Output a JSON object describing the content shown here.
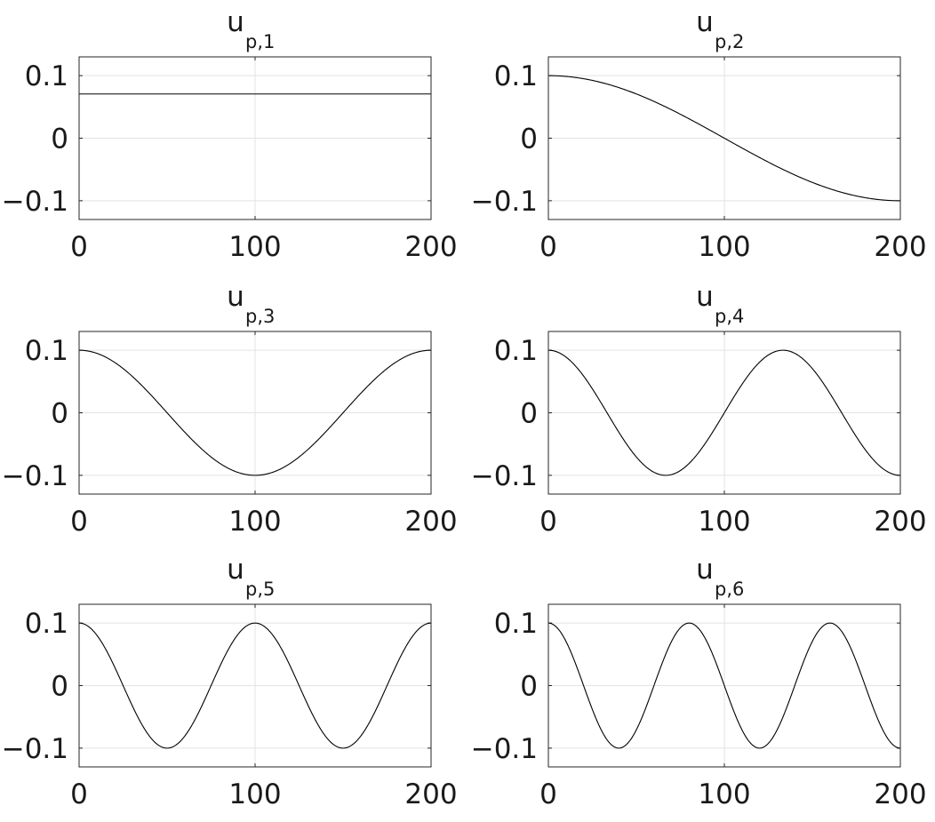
{
  "chart_data": [
    {
      "type": "line",
      "title": "u",
      "title_sub": "p,1",
      "x_range": [
        0,
        200
      ],
      "ylim": [
        -0.13,
        0.13
      ],
      "xticks": [
        0,
        100,
        200
      ],
      "xtick_labels": [
        "0",
        "100",
        "200"
      ],
      "yticks": [
        0.1,
        0,
        -0.1
      ],
      "ytick_labels": [
        "0.1",
        "0",
        "−0.1"
      ],
      "grid": true,
      "series": [
        {
          "function": "0.1*cos(0*pi*x/200)/sqrt(2)",
          "mode": 0,
          "amplitude": 0.0707
        }
      ]
    },
    {
      "type": "line",
      "title": "u",
      "title_sub": "p,2",
      "x_range": [
        0,
        200
      ],
      "ylim": [
        -0.13,
        0.13
      ],
      "xticks": [
        0,
        100,
        200
      ],
      "xtick_labels": [
        "0",
        "100",
        "200"
      ],
      "yticks": [
        0.1,
        0,
        -0.1
      ],
      "ytick_labels": [
        "0.1",
        "0",
        "−0.1"
      ],
      "grid": true,
      "series": [
        {
          "function": "0.1*cos(1*pi*x/200)",
          "mode": 1,
          "amplitude": 0.1
        }
      ]
    },
    {
      "type": "line",
      "title": "u",
      "title_sub": "p,3",
      "x_range": [
        0,
        200
      ],
      "ylim": [
        -0.13,
        0.13
      ],
      "xticks": [
        0,
        100,
        200
      ],
      "xtick_labels": [
        "0",
        "100",
        "200"
      ],
      "yticks": [
        0.1,
        0,
        -0.1
      ],
      "ytick_labels": [
        "0.1",
        "0",
        "−0.1"
      ],
      "grid": true,
      "series": [
        {
          "function": "0.1*cos(2*pi*x/200)",
          "mode": 2,
          "amplitude": 0.1
        }
      ]
    },
    {
      "type": "line",
      "title": "u",
      "title_sub": "p,4",
      "x_range": [
        0,
        200
      ],
      "ylim": [
        -0.13,
        0.13
      ],
      "xticks": [
        0,
        100,
        200
      ],
      "xtick_labels": [
        "0",
        "100",
        "200"
      ],
      "yticks": [
        0.1,
        0,
        -0.1
      ],
      "ytick_labels": [
        "0.1",
        "0",
        "−0.1"
      ],
      "grid": true,
      "series": [
        {
          "function": "0.1*cos(3*pi*x/200)",
          "mode": 3,
          "amplitude": 0.1
        }
      ]
    },
    {
      "type": "line",
      "title": "u",
      "title_sub": "p,5",
      "x_range": [
        0,
        200
      ],
      "ylim": [
        -0.13,
        0.13
      ],
      "xticks": [
        0,
        100,
        200
      ],
      "xtick_labels": [
        "0",
        "100",
        "200"
      ],
      "yticks": [
        0.1,
        0,
        -0.1
      ],
      "ytick_labels": [
        "0.1",
        "0",
        "−0.1"
      ],
      "grid": true,
      "series": [
        {
          "function": "0.1*cos(4*pi*x/200)",
          "mode": 4,
          "amplitude": 0.1
        }
      ]
    },
    {
      "type": "line",
      "title": "u",
      "title_sub": "p,6",
      "x_range": [
        0,
        200
      ],
      "ylim": [
        -0.13,
        0.13
      ],
      "xticks": [
        0,
        100,
        200
      ],
      "xtick_labels": [
        "0",
        "100",
        "200"
      ],
      "yticks": [
        0.1,
        0,
        -0.1
      ],
      "ytick_labels": [
        "0.1",
        "0",
        "−0.1"
      ],
      "grid": true,
      "series": [
        {
          "function": "0.1*cos(5*pi*x/200)",
          "mode": 5,
          "amplitude": 0.1
        }
      ]
    }
  ]
}
